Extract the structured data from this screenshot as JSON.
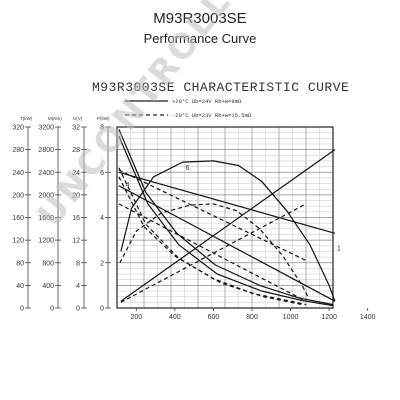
{
  "header": {
    "title": "M93R3003SE",
    "subtitle": "Performance Curve"
  },
  "watermark": "UNCONTROLLED COPY",
  "chart_data": {
    "type": "line",
    "title": "M93R3003SE CHARACTERISTIC CURVE",
    "legend": [
      {
        "style": "solid",
        "text": "+20°C   Ub=24V   Rb+w=8mΩ"
      },
      {
        "style": "dashed",
        "text": "-20°C   Ub=23V   Rb+w=15.5mΩ"
      }
    ],
    "legend_placement": "top",
    "x_ticks": [
      "200",
      "400",
      "600",
      "800",
      "1000",
      "1200",
      "1400"
    ],
    "xlim": [
      100,
      1400
    ],
    "axes": [
      {
        "label": "T(kW)",
        "ticks": [
          "0",
          "40",
          "80",
          "120",
          "160",
          "200",
          "240",
          "280",
          "320"
        ]
      },
      {
        "label": "M(Nm)",
        "ticks": [
          "0",
          "400",
          "800",
          "1200",
          "1600",
          "2000",
          "2400",
          "2800",
          "3200"
        ]
      },
      {
        "label": "U(V)",
        "ticks": [
          "0",
          "4",
          "8",
          "12",
          "16",
          "20",
          "24",
          "28",
          "32"
        ]
      },
      {
        "label": "P(kW)",
        "ticks": [
          "0",
          "2",
          "4",
          "6",
          "8"
        ]
      }
    ],
    "grid": true,
    "series": [
      {
        "style": "solid",
        "points": [
          [
            120,
            0.3
          ],
          [
            1230,
            7.0
          ]
        ]
      },
      {
        "style": "solid",
        "points": [
          [
            110,
            6.0
          ],
          [
            1230,
            3.3
          ]
        ]
      },
      {
        "style": "solid",
        "points": [
          [
            120,
            2.5
          ],
          [
            175,
            4.4
          ],
          [
            290,
            5.8
          ],
          [
            440,
            6.45
          ],
          [
            600,
            6.5
          ],
          [
            730,
            6.3
          ],
          [
            850,
            5.6
          ],
          [
            980,
            4.3
          ],
          [
            1100,
            2.8
          ],
          [
            1200,
            1.0
          ],
          [
            1230,
            0.3
          ]
        ]
      },
      {
        "style": "solid",
        "points": [
          [
            110,
            7.6
          ],
          [
            260,
            4.6
          ],
          [
            420,
            2.8
          ],
          [
            620,
            1.5
          ],
          [
            850,
            0.75
          ],
          [
            1050,
            0.35
          ],
          [
            1220,
            0.1
          ]
        ]
      },
      {
        "style": "solid",
        "points": [
          [
            110,
            7.9
          ],
          [
            250,
            5.1
          ],
          [
            410,
            3.3
          ],
          [
            610,
            1.9
          ],
          [
            840,
            1.0
          ],
          [
            1040,
            0.45
          ],
          [
            1220,
            0.15
          ]
        ]
      },
      {
        "style": "solid",
        "points": [
          [
            110,
            5.4
          ],
          [
            1230,
            0.3
          ]
        ]
      },
      {
        "style": "dashed",
        "points": [
          [
            120,
            0.25
          ],
          [
            1080,
            4.6
          ]
        ]
      },
      {
        "style": "dashed",
        "points": [
          [
            110,
            6.1
          ],
          [
            1080,
            2.1
          ]
        ]
      },
      {
        "style": "dashed",
        "points": [
          [
            115,
            2.0
          ],
          [
            200,
            3.4
          ],
          [
            330,
            4.2
          ],
          [
            480,
            4.55
          ],
          [
            600,
            4.6
          ],
          [
            720,
            4.3
          ],
          [
            840,
            3.5
          ],
          [
            960,
            2.3
          ],
          [
            1060,
            1.0
          ],
          [
            1090,
            0.5
          ]
        ]
      },
      {
        "style": "dashed",
        "points": [
          [
            110,
            6.2
          ],
          [
            250,
            3.7
          ],
          [
            420,
            2.2
          ],
          [
            640,
            1.1
          ],
          [
            860,
            0.5
          ],
          [
            1060,
            0.15
          ]
        ]
      },
      {
        "style": "dashed",
        "points": [
          [
            110,
            5.8
          ],
          [
            240,
            3.6
          ],
          [
            400,
            2.3
          ],
          [
            600,
            1.3
          ],
          [
            800,
            0.65
          ],
          [
            1000,
            0.3
          ],
          [
            1080,
            0.15
          ]
        ]
      },
      {
        "style": "dashed",
        "points": [
          [
            110,
            4.6
          ],
          [
            1080,
            0.3
          ]
        ]
      }
    ],
    "annotations": [
      {
        "text": "6",
        "x": 455,
        "y": 6.1
      },
      {
        "text": "1",
        "x": 1240,
        "y": 2.55
      },
      {
        "text": "4",
        "x": 145,
        "y": 5.35
      }
    ]
  }
}
